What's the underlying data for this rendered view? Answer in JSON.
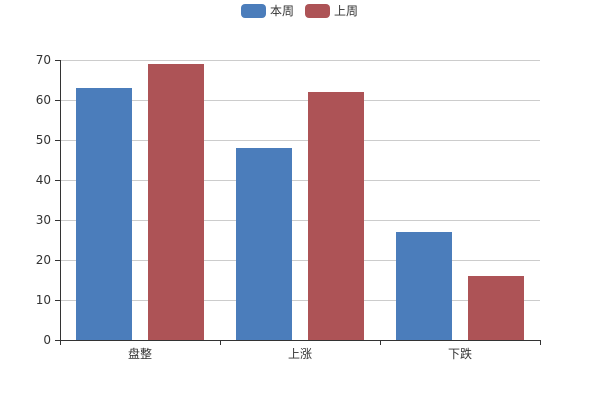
{
  "chart_data": {
    "type": "bar",
    "categories": [
      "盘整",
      "上涨",
      "下跌"
    ],
    "series": [
      {
        "name": "本周",
        "values": [
          63,
          48,
          27
        ],
        "color": "#4b7dbb"
      },
      {
        "name": "上周",
        "values": [
          69,
          62,
          16
        ],
        "color": "#ad5356"
      }
    ],
    "ylim": [
      0,
      70
    ],
    "yticks": [
      0,
      10,
      20,
      30,
      40,
      50,
      60,
      70
    ],
    "grid": true,
    "legend": "top-center"
  }
}
